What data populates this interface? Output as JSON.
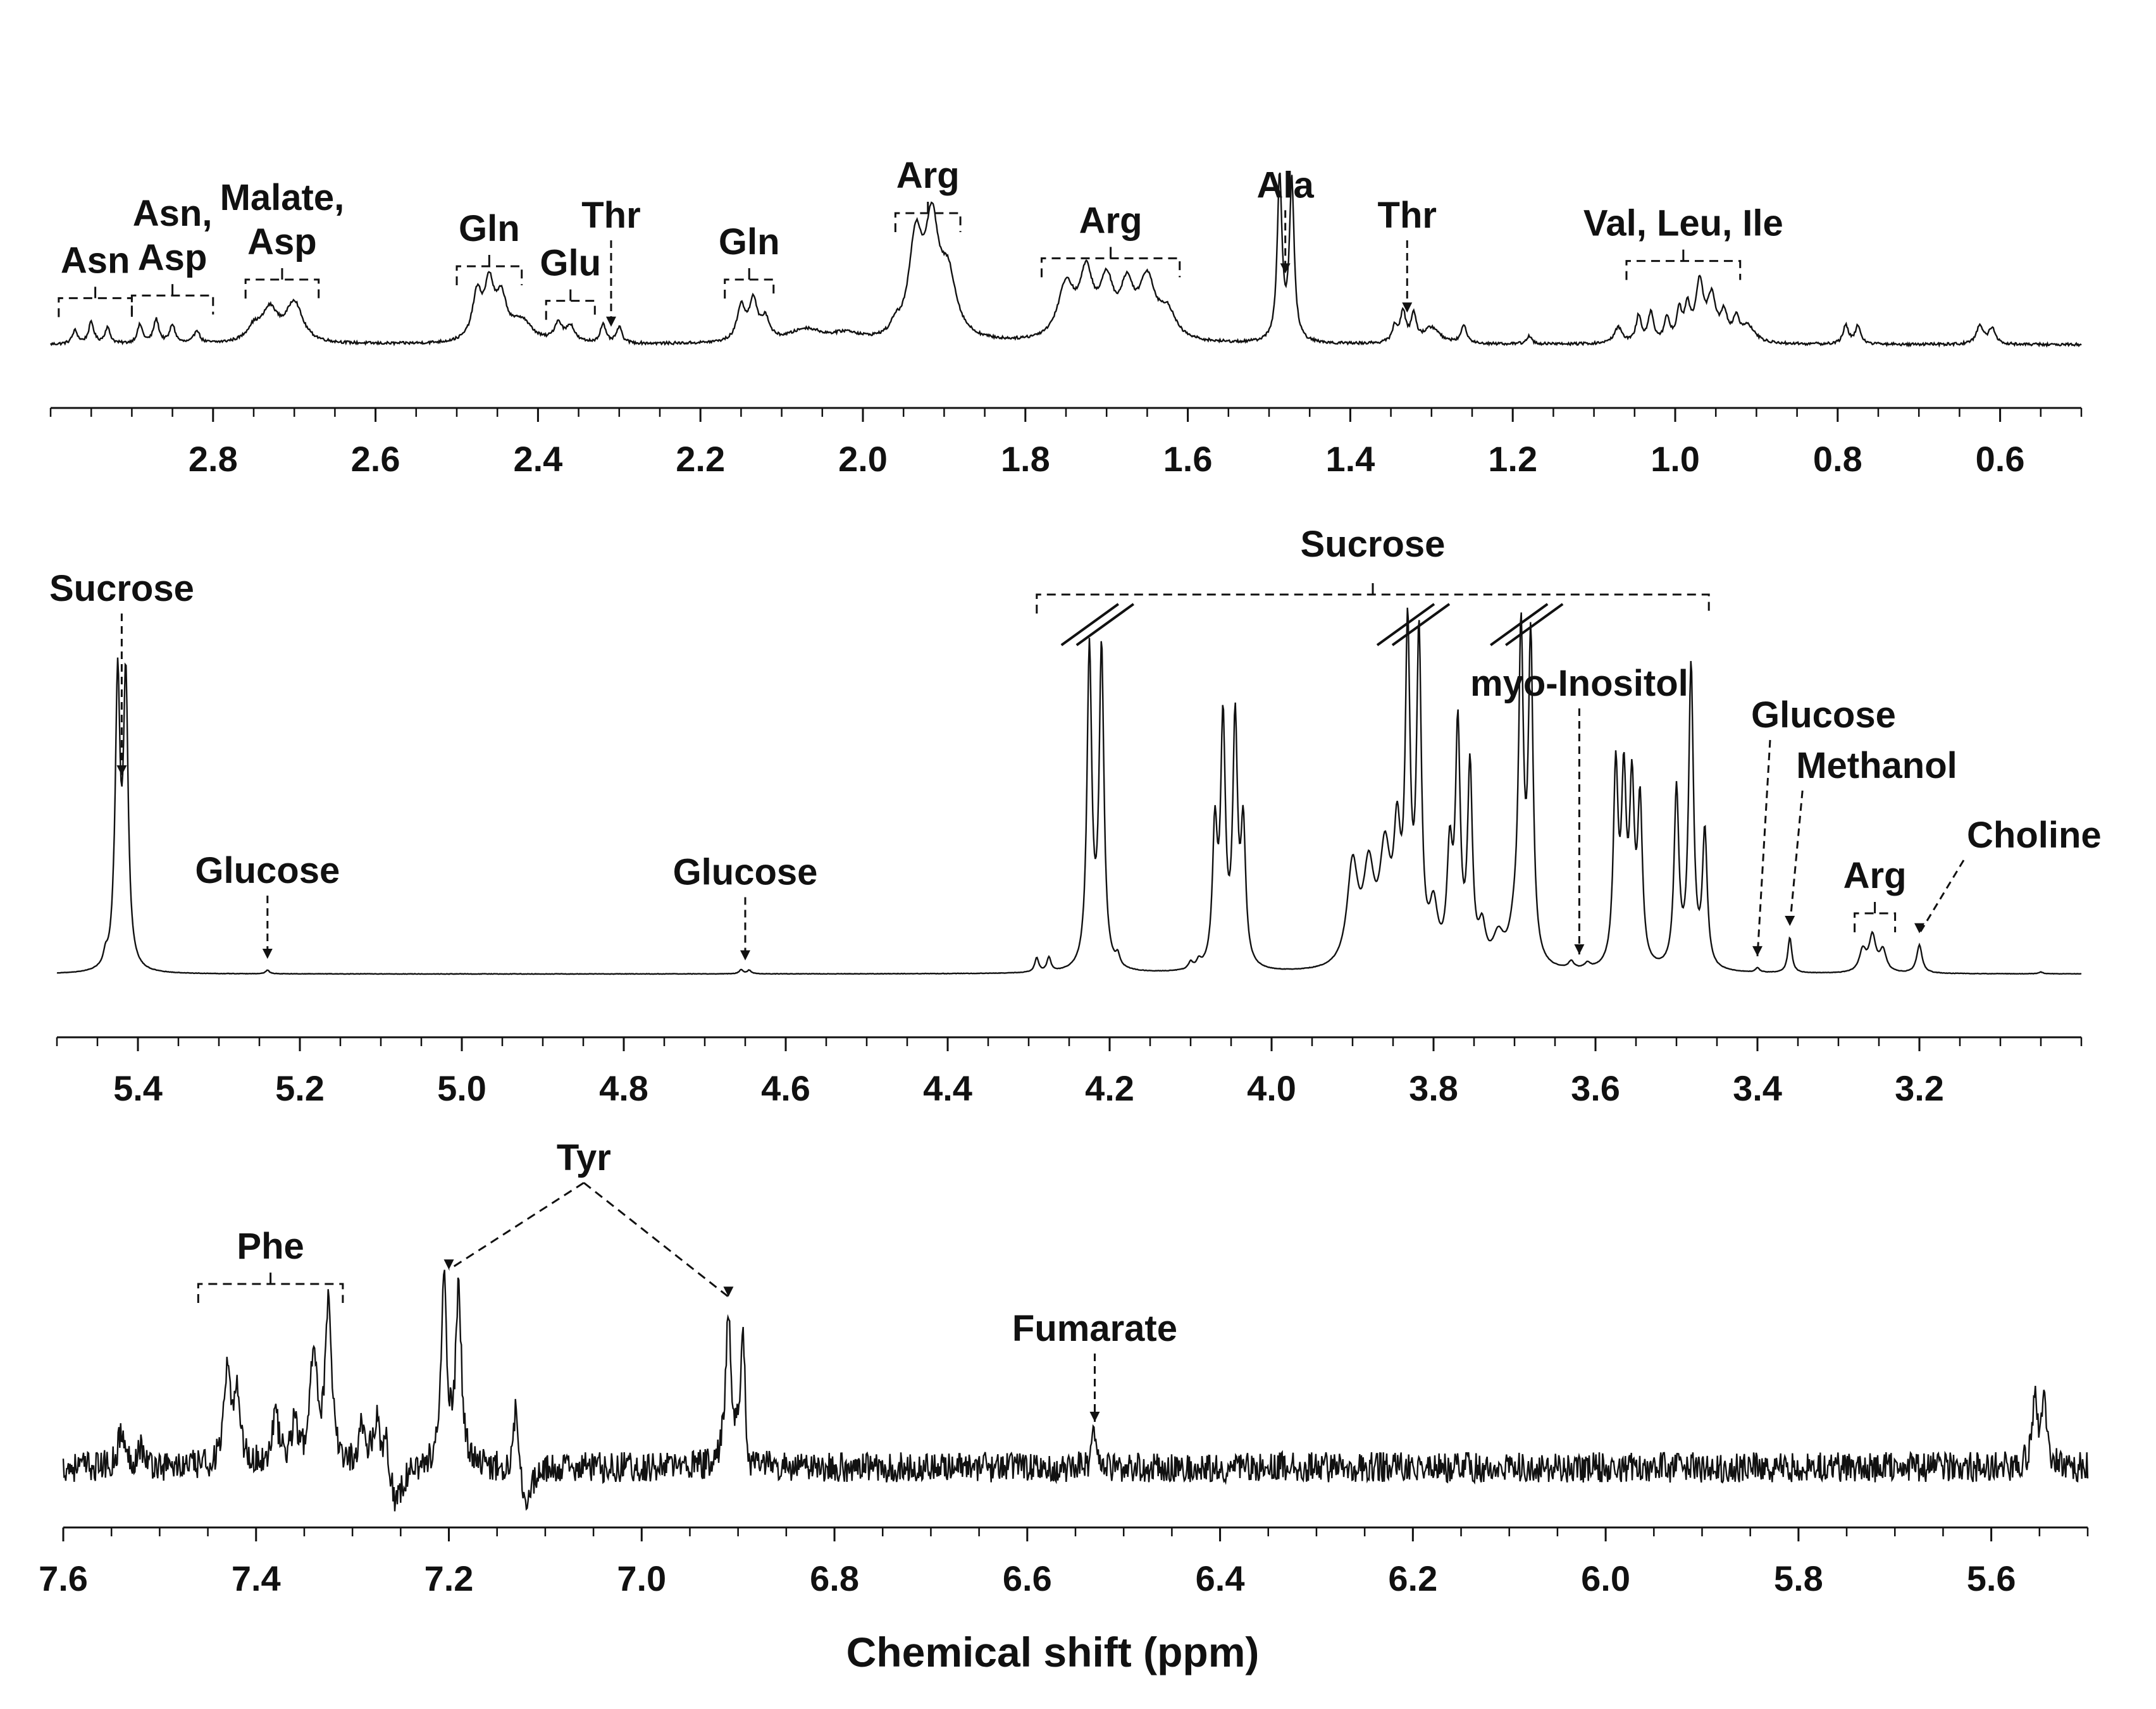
{
  "chart_data": [
    {
      "type": "line",
      "title": "",
      "xlabel": "",
      "ylabel": "",
      "xlim": [
        3.0,
        0.5
      ],
      "x_reversed": true,
      "ticks": [
        "2.8",
        "2.6",
        "2.4",
        "2.2",
        "2.0",
        "1.8",
        "1.6",
        "1.4",
        "1.2",
        "1.0",
        "0.8",
        "0.6"
      ],
      "tick_values": [
        2.8,
        2.6,
        2.4,
        2.2,
        2.0,
        1.8,
        1.6,
        1.4,
        1.2,
        1.0,
        0.8,
        0.6
      ],
      "noise": 0.003,
      "peaks": [
        {
          "ppm": 2.97,
          "h": 0.05,
          "w": 0.004
        },
        {
          "ppm": 2.95,
          "h": 0.08,
          "w": 0.004
        },
        {
          "ppm": 2.93,
          "h": 0.06,
          "w": 0.004
        },
        {
          "ppm": 2.89,
          "h": 0.07,
          "w": 0.004
        },
        {
          "ppm": 2.87,
          "h": 0.09,
          "w": 0.004
        },
        {
          "ppm": 2.85,
          "h": 0.07,
          "w": 0.004
        },
        {
          "ppm": 2.82,
          "h": 0.05,
          "w": 0.004
        },
        {
          "ppm": 2.73,
          "h": 0.12,
          "w": 0.012
        },
        {
          "ppm": 2.7,
          "h": 0.15,
          "w": 0.012
        },
        {
          "ppm": 2.75,
          "h": 0.05,
          "w": 0.01
        },
        {
          "ppm": 2.475,
          "h": 0.17,
          "w": 0.007
        },
        {
          "ppm": 2.46,
          "h": 0.2,
          "w": 0.007
        },
        {
          "ppm": 2.445,
          "h": 0.15,
          "w": 0.008
        },
        {
          "ppm": 2.42,
          "h": 0.08,
          "w": 0.015
        },
        {
          "ppm": 2.375,
          "h": 0.07,
          "w": 0.006
        },
        {
          "ppm": 2.36,
          "h": 0.06,
          "w": 0.006
        },
        {
          "ppm": 2.32,
          "h": 0.07,
          "w": 0.004
        },
        {
          "ppm": 2.3,
          "h": 0.06,
          "w": 0.004
        },
        {
          "ppm": 2.15,
          "h": 0.13,
          "w": 0.006
        },
        {
          "ppm": 2.135,
          "h": 0.15,
          "w": 0.006
        },
        {
          "ppm": 2.12,
          "h": 0.08,
          "w": 0.006
        },
        {
          "ppm": 2.07,
          "h": 0.05,
          "w": 0.025
        },
        {
          "ppm": 2.02,
          "h": 0.03,
          "w": 0.02
        },
        {
          "ppm": 1.96,
          "h": 0.04,
          "w": 0.006
        },
        {
          "ppm": 1.935,
          "h": 0.36,
          "w": 0.01
        },
        {
          "ppm": 1.915,
          "h": 0.4,
          "w": 0.01
        },
        {
          "ppm": 1.895,
          "h": 0.22,
          "w": 0.012
        },
        {
          "ppm": 1.75,
          "h": 0.2,
          "w": 0.012
        },
        {
          "ppm": 1.725,
          "h": 0.23,
          "w": 0.01
        },
        {
          "ppm": 1.7,
          "h": 0.2,
          "w": 0.01
        },
        {
          "ppm": 1.675,
          "h": 0.18,
          "w": 0.01
        },
        {
          "ppm": 1.65,
          "h": 0.22,
          "w": 0.012
        },
        {
          "ppm": 1.625,
          "h": 0.1,
          "w": 0.012
        },
        {
          "ppm": 1.487,
          "h": 0.62,
          "w": 0.0035
        },
        {
          "ppm": 1.472,
          "h": 0.6,
          "w": 0.0035
        },
        {
          "ppm": 1.345,
          "h": 0.06,
          "w": 0.004
        },
        {
          "ppm": 1.335,
          "h": 0.11,
          "w": 0.004
        },
        {
          "ppm": 1.322,
          "h": 0.1,
          "w": 0.004
        },
        {
          "ppm": 1.3,
          "h": 0.06,
          "w": 0.012
        },
        {
          "ppm": 1.26,
          "h": 0.07,
          "w": 0.004
        },
        {
          "ppm": 1.18,
          "h": 0.03,
          "w": 0.004
        },
        {
          "ppm": 1.07,
          "h": 0.06,
          "w": 0.006
        },
        {
          "ppm": 1.045,
          "h": 0.1,
          "w": 0.004
        },
        {
          "ppm": 1.03,
          "h": 0.11,
          "w": 0.004
        },
        {
          "ppm": 1.01,
          "h": 0.09,
          "w": 0.004
        },
        {
          "ppm": 0.995,
          "h": 0.11,
          "w": 0.004
        },
        {
          "ppm": 0.985,
          "h": 0.12,
          "w": 0.004
        },
        {
          "ppm": 0.97,
          "h": 0.22,
          "w": 0.006
        },
        {
          "ppm": 0.955,
          "h": 0.16,
          "w": 0.006
        },
        {
          "ppm": 0.94,
          "h": 0.1,
          "w": 0.005
        },
        {
          "ppm": 0.925,
          "h": 0.08,
          "w": 0.005
        },
        {
          "ppm": 0.91,
          "h": 0.06,
          "w": 0.01
        },
        {
          "ppm": 0.79,
          "h": 0.07,
          "w": 0.004
        },
        {
          "ppm": 0.775,
          "h": 0.07,
          "w": 0.004
        },
        {
          "ppm": 0.625,
          "h": 0.07,
          "w": 0.005
        },
        {
          "ppm": 0.61,
          "h": 0.06,
          "w": 0.005
        }
      ],
      "annotations": [
        {
          "label": "Asn",
          "ppm": 2.95,
          "kind": "bracket",
          "from": 2.99,
          "to": 2.9,
          "line2": ""
        },
        {
          "label": "Asn,",
          "ppm": 2.85,
          "kind": "bracket",
          "from": 2.9,
          "to": 2.8,
          "line2": "Asp"
        },
        {
          "label": "Malate,",
          "ppm": 2.71,
          "kind": "bracket",
          "from": 2.76,
          "to": 2.67,
          "line2": "Asp"
        },
        {
          "label": "Gln",
          "ppm": 2.46,
          "kind": "bracket",
          "from": 2.5,
          "to": 2.42,
          "line2": ""
        },
        {
          "label": "Glu",
          "ppm": 2.36,
          "kind": "bracket",
          "from": 2.39,
          "to": 2.33,
          "line2": ""
        },
        {
          "label": "Thr",
          "ppm": 2.31,
          "kind": "arrow",
          "line2": ""
        },
        {
          "label": "Gln",
          "ppm": 2.14,
          "kind": "bracket",
          "from": 2.17,
          "to": 2.11,
          "line2": ""
        },
        {
          "label": "Arg",
          "ppm": 1.915,
          "kind": "bracket",
          "from": 1.96,
          "to": 1.88,
          "line2": ""
        },
        {
          "label": "Arg",
          "ppm": 1.7,
          "kind": "bracket",
          "from": 1.78,
          "to": 1.61,
          "line2": ""
        },
        {
          "label": "Ala",
          "ppm": 1.48,
          "kind": "arrow",
          "line2": ""
        },
        {
          "label": "Thr",
          "ppm": 1.33,
          "kind": "arrow",
          "line2": ""
        },
        {
          "label": "Val, Leu, Ile",
          "ppm": 0.98,
          "kind": "bracket",
          "from": 1.06,
          "to": 0.92,
          "line2": ""
        }
      ]
    },
    {
      "type": "line",
      "title": "",
      "xlabel": "",
      "ylabel": "",
      "xlim": [
        5.5,
        3.0
      ],
      "x_reversed": true,
      "ticks": [
        "5.4",
        "5.2",
        "5.0",
        "4.8",
        "4.6",
        "4.4",
        "4.2",
        "4.0",
        "3.8",
        "3.6",
        "3.4",
        "3.2"
      ],
      "tick_values": [
        5.4,
        5.2,
        5.0,
        4.8,
        4.6,
        4.4,
        4.2,
        4.0,
        3.8,
        3.6,
        3.4,
        3.2
      ],
      "noise": 0.0015,
      "peaks": [
        {
          "ppm": 5.44,
          "h": 0.03,
          "w": 0.003
        },
        {
          "ppm": 5.43,
          "h": 0.02,
          "w": 0.003
        },
        {
          "ppm": 5.425,
          "h": 0.8,
          "w": 0.0035
        },
        {
          "ppm": 5.415,
          "h": 0.8,
          "w": 0.0035
        },
        {
          "ppm": 5.24,
          "h": 0.01,
          "w": 0.003
        },
        {
          "ppm": 4.655,
          "h": 0.012,
          "w": 0.003
        },
        {
          "ppm": 4.645,
          "h": 0.01,
          "w": 0.003
        },
        {
          "ppm": 4.29,
          "h": 0.04,
          "w": 0.003
        },
        {
          "ppm": 4.275,
          "h": 0.04,
          "w": 0.003
        },
        {
          "ppm": 4.225,
          "h": 0.9,
          "w": 0.0035
        },
        {
          "ppm": 4.21,
          "h": 0.9,
          "w": 0.0035
        },
        {
          "ppm": 4.19,
          "h": 0.03,
          "w": 0.003
        },
        {
          "ppm": 4.1,
          "h": 0.02,
          "w": 0.003
        },
        {
          "ppm": 4.09,
          "h": 0.02,
          "w": 0.003
        },
        {
          "ppm": 4.07,
          "h": 0.38,
          "w": 0.0035
        },
        {
          "ppm": 4.06,
          "h": 0.68,
          "w": 0.0035
        },
        {
          "ppm": 4.045,
          "h": 0.68,
          "w": 0.0035
        },
        {
          "ppm": 4.035,
          "h": 0.38,
          "w": 0.0035
        },
        {
          "ppm": 3.9,
          "h": 0.28,
          "w": 0.008
        },
        {
          "ppm": 3.88,
          "h": 0.25,
          "w": 0.008
        },
        {
          "ppm": 3.86,
          "h": 0.3,
          "w": 0.008
        },
        {
          "ppm": 3.845,
          "h": 0.32,
          "w": 0.005
        },
        {
          "ppm": 3.832,
          "h": 0.9,
          "w": 0.0035
        },
        {
          "ppm": 3.818,
          "h": 0.9,
          "w": 0.0035
        },
        {
          "ppm": 3.8,
          "h": 0.15,
          "w": 0.006
        },
        {
          "ppm": 3.78,
          "h": 0.3,
          "w": 0.004
        },
        {
          "ppm": 3.77,
          "h": 0.65,
          "w": 0.0035
        },
        {
          "ppm": 3.755,
          "h": 0.55,
          "w": 0.0035
        },
        {
          "ppm": 3.74,
          "h": 0.1,
          "w": 0.005
        },
        {
          "ppm": 3.72,
          "h": 0.08,
          "w": 0.008
        },
        {
          "ppm": 3.7,
          "h": 0.08,
          "w": 0.008
        },
        {
          "ppm": 3.692,
          "h": 0.9,
          "w": 0.0035
        },
        {
          "ppm": 3.68,
          "h": 0.9,
          "w": 0.0035
        },
        {
          "ppm": 3.63,
          "h": 0.02,
          "w": 0.004
        },
        {
          "ppm": 3.61,
          "h": 0.015,
          "w": 0.004
        },
        {
          "ppm": 3.575,
          "h": 0.55,
          "w": 0.0035
        },
        {
          "ppm": 3.565,
          "h": 0.5,
          "w": 0.0035
        },
        {
          "ppm": 3.555,
          "h": 0.48,
          "w": 0.0035
        },
        {
          "ppm": 3.545,
          "h": 0.45,
          "w": 0.0035
        },
        {
          "ppm": 3.5,
          "h": 0.5,
          "w": 0.0035
        },
        {
          "ppm": 3.482,
          "h": 0.85,
          "w": 0.0035
        },
        {
          "ppm": 3.465,
          "h": 0.38,
          "w": 0.0035
        },
        {
          "ppm": 3.4,
          "h": 0.012,
          "w": 0.003
        },
        {
          "ppm": 3.36,
          "h": 0.1,
          "w": 0.003
        },
        {
          "ppm": 3.27,
          "h": 0.06,
          "w": 0.005
        },
        {
          "ppm": 3.258,
          "h": 0.1,
          "w": 0.005
        },
        {
          "ppm": 3.245,
          "h": 0.06,
          "w": 0.005
        },
        {
          "ppm": 3.2,
          "h": 0.08,
          "w": 0.004
        },
        {
          "ppm": 3.05,
          "h": 0.005,
          "w": 0.003
        }
      ],
      "annotations": [
        {
          "label": "Sucrose",
          "ppm": 5.42,
          "kind": "arrow",
          "line2": ""
        },
        {
          "label": "Glucose",
          "ppm": 5.24,
          "kind": "arrow",
          "line2": ""
        },
        {
          "label": "Glucose",
          "ppm": 4.65,
          "kind": "arrow",
          "line2": ""
        },
        {
          "label": "Sucrose",
          "ppm": 3.87,
          "kind": "bracket",
          "from": 4.29,
          "to": 3.46,
          "line2": ""
        },
        {
          "label": "myo-Inositol",
          "ppm": 3.62,
          "kind": "arrow",
          "line2": ""
        },
        {
          "label": "Glucose",
          "ppm": 3.4,
          "kind": "arrow",
          "line2": ""
        },
        {
          "label": "Methanol",
          "ppm": 3.36,
          "kind": "arrow",
          "line2": ""
        },
        {
          "label": "Arg",
          "ppm": 3.26,
          "kind": "bracket",
          "from": 3.28,
          "to": 3.23,
          "line2": ""
        },
        {
          "label": "Choline",
          "ppm": 3.2,
          "kind": "arrow",
          "line2": ""
        }
      ]
    },
    {
      "type": "line",
      "title": "",
      "xlabel": "Chemical shift (ppm)",
      "ylabel": "",
      "xlim": [
        7.6,
        5.5
      ],
      "x_reversed": true,
      "ticks": [
        "7.6",
        "7.4",
        "7.2",
        "7.0",
        "6.8",
        "6.6",
        "6.4",
        "6.2",
        "6.0",
        "5.8",
        "5.6"
      ],
      "tick_values": [
        7.6,
        7.4,
        7.2,
        7.0,
        6.8,
        6.6,
        6.4,
        6.2,
        6.0,
        5.8,
        5.6
      ],
      "noise": 0.025,
      "peaks": [
        {
          "ppm": 7.54,
          "h": 0.1,
          "w": 0.004
        },
        {
          "ppm": 7.52,
          "h": 0.06,
          "w": 0.004
        },
        {
          "ppm": 7.43,
          "h": 0.25,
          "w": 0.004
        },
        {
          "ppm": 7.42,
          "h": 0.22,
          "w": 0.004
        },
        {
          "ppm": 7.38,
          "h": 0.15,
          "w": 0.004
        },
        {
          "ppm": 7.36,
          "h": 0.12,
          "w": 0.004
        },
        {
          "ppm": 7.34,
          "h": 0.35,
          "w": 0.004
        },
        {
          "ppm": 7.325,
          "h": 0.45,
          "w": 0.004
        },
        {
          "ppm": 7.29,
          "h": 0.12,
          "w": 0.004
        },
        {
          "ppm": 7.275,
          "h": 0.14,
          "w": 0.004
        },
        {
          "ppm": 7.265,
          "h": 0.1,
          "w": 0.004
        },
        {
          "ppm": 7.255,
          "h": -0.12,
          "w": 0.008
        },
        {
          "ppm": 7.205,
          "h": 0.52,
          "w": 0.0035
        },
        {
          "ppm": 7.19,
          "h": 0.52,
          "w": 0.0035
        },
        {
          "ppm": 7.13,
          "h": 0.22,
          "w": 0.003
        },
        {
          "ppm": 7.12,
          "h": -0.1,
          "w": 0.008
        },
        {
          "ppm": 6.91,
          "h": 0.45,
          "w": 0.0035
        },
        {
          "ppm": 6.895,
          "h": 0.4,
          "w": 0.0035
        },
        {
          "ppm": 6.89,
          "h": -0.08,
          "w": 0.005
        },
        {
          "ppm": 6.53,
          "h": 0.1,
          "w": 0.003
        },
        {
          "ppm": 5.555,
          "h": 0.18,
          "w": 0.0035
        },
        {
          "ppm": 5.545,
          "h": 0.18,
          "w": 0.0035
        }
      ],
      "annotations": [
        {
          "label": "Phe",
          "ppm": 7.38,
          "kind": "bracket",
          "from": 7.46,
          "to": 7.31,
          "line2": ""
        },
        {
          "label": "Tyr",
          "ppm": 7.06,
          "kind": "tyr",
          "line2": ""
        },
        {
          "label": "Fumarate",
          "ppm": 6.53,
          "kind": "arrow",
          "line2": ""
        }
      ]
    }
  ]
}
